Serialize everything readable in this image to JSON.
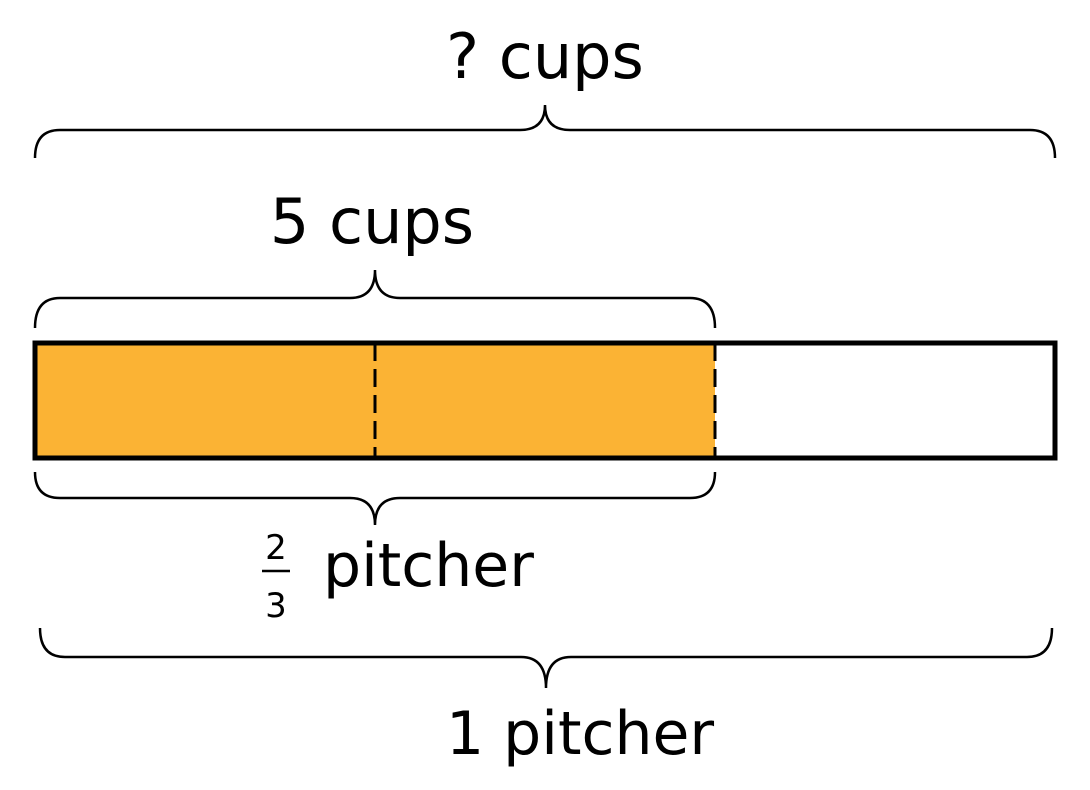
{
  "labels": {
    "total_cups": "? cups",
    "part_cups": "5 cups",
    "fraction_numerator": "2",
    "fraction_denominator": "3",
    "fraction_unit": "pitcher",
    "whole": "1 pitcher"
  },
  "tape": {
    "total_parts": 3,
    "shaded_parts": 2,
    "shaded_color": "#FBB334",
    "unshaded_color": "#FFFFFF",
    "border_color": "#000000"
  }
}
